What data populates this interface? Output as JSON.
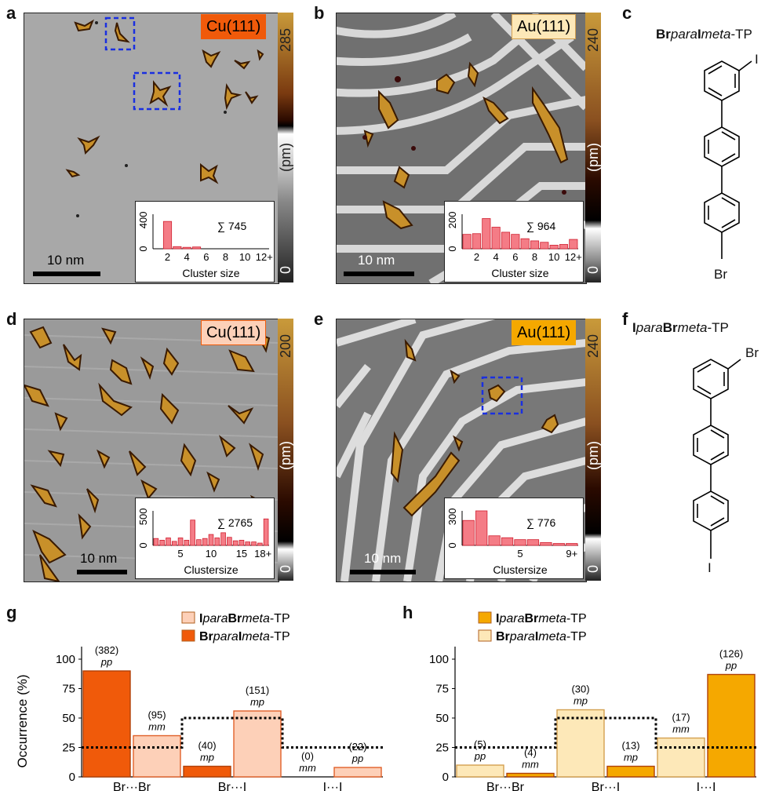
{
  "panels": {
    "a": {
      "letter": "a",
      "surface": "Cu(111)",
      "cbar_max": "285",
      "cbar_unit": "(pm)",
      "cbar_min": "0",
      "scale": "10 nm",
      "sum": "∑ 745",
      "xlabel": "Cluster size",
      "yticks": [
        "400",
        "0"
      ],
      "xticks": [
        "2",
        "4",
        "6",
        "8",
        "10",
        "12+"
      ],
      "hist": [
        0,
        380,
        30,
        20,
        25,
        0,
        0,
        0,
        0,
        0,
        0,
        0
      ]
    },
    "b": {
      "letter": "b",
      "surface": "Au(111)",
      "cbar_max": "240",
      "cbar_unit": "(pm)",
      "cbar_min": "0",
      "scale": "10 nm",
      "sum": "∑ 964",
      "xlabel": "Cluster size",
      "yticks": [
        "200",
        "0"
      ],
      "xticks": [
        "2",
        "4",
        "6",
        "8",
        "10",
        "12+"
      ],
      "hist": [
        100,
        105,
        210,
        150,
        115,
        100,
        70,
        55,
        45,
        25,
        30,
        65
      ]
    },
    "c": {
      "letter": "c",
      "name_pre_b": "Br",
      "name_pre_i": "para",
      "name_mid_b": "I",
      "name_mid_i": "meta",
      "name_suffix": "-TP",
      "top_sub": "I",
      "bottom_sub": "Br"
    },
    "d": {
      "letter": "d",
      "surface": "Cu(111)",
      "cbar_max": "200",
      "cbar_unit": "(pm)",
      "cbar_min": "0",
      "scale": "10 nm",
      "sum": "∑ 2765",
      "xlabel": "Clustersize",
      "yticks": [
        "500",
        "0"
      ],
      "xticks": [
        "5",
        "10",
        "15",
        "18+"
      ],
      "hist": [
        120,
        90,
        130,
        70,
        130,
        90,
        440,
        100,
        120,
        190,
        130,
        220,
        140,
        80,
        90,
        60,
        60,
        40,
        460
      ]
    },
    "e": {
      "letter": "e",
      "surface": "Au(111)",
      "cbar_max": "240",
      "cbar_unit": "(pm)",
      "cbar_min": "0",
      "scale": "10 nm",
      "sum": "∑ 776",
      "xlabel": "Clustersize",
      "yticks": [
        "300",
        "0"
      ],
      "xticks": [
        "5",
        "9+"
      ],
      "hist": [
        260,
        360,
        100,
        80,
        60,
        60,
        30,
        20,
        20
      ]
    },
    "f": {
      "letter": "f",
      "name_pre_b": "I",
      "name_pre_i": "para",
      "name_mid_b": "Br",
      "name_mid_i": "meta",
      "name_suffix": "-TP",
      "top_sub": "Br",
      "bottom_sub": "I"
    },
    "g": {
      "letter": "g"
    },
    "h": {
      "letter": "h"
    }
  },
  "chart_data": [
    {
      "type": "bar",
      "panel": "g",
      "ylabel": "Occurrence (%)",
      "yticks": [
        "0",
        "25",
        "50",
        "75",
        "100"
      ],
      "ylim": [
        0,
        100
      ],
      "categories": [
        "Br···Br",
        "Br···I",
        "I···I"
      ],
      "legend": [
        {
          "bold": "I",
          "ital": "para",
          "bold2": "Br",
          "ital2": "meta",
          "suffix": "-TP",
          "color": "#fdd0b8"
        },
        {
          "bold": "Br",
          "ital": "para",
          "bold2": "I",
          "ital2": "meta",
          "suffix": "-TP",
          "color": "#f05a0a"
        }
      ],
      "bars": [
        {
          "value": 90,
          "count": "(382)",
          "type": "pp",
          "color": "#f05a0a"
        },
        {
          "value": 35,
          "count": "(95)",
          "type": "mm",
          "color": "#fdd0b8"
        },
        {
          "value": 9,
          "count": "(40)",
          "type": "mp",
          "color": "#f05a0a"
        },
        {
          "value": 56,
          "count": "(151)",
          "type": "mp",
          "color": "#fdd0b8"
        },
        {
          "value": 0,
          "count": "(0)",
          "type": "mm",
          "color": "#f05a0a"
        },
        {
          "value": 8,
          "count": "(22)",
          "type": "pp",
          "color": "#fdd0b8"
        }
      ],
      "dotted_levels": [
        25,
        50,
        25
      ]
    },
    {
      "type": "bar",
      "panel": "h",
      "ylabel": "",
      "yticks": [
        "0",
        "25",
        "50",
        "75",
        "100"
      ],
      "ylim": [
        0,
        100
      ],
      "categories": [
        "Br···Br",
        "Br···I",
        "I···I"
      ],
      "legend": [
        {
          "bold": "I",
          "ital": "para",
          "bold2": "Br",
          "ital2": "meta",
          "suffix": "-TP",
          "color": "#f5a800"
        },
        {
          "bold": "Br",
          "ital": "para",
          "bold2": "I",
          "ital2": "meta",
          "suffix": "-TP",
          "color": "#fde8b8"
        }
      ],
      "bars": [
        {
          "value": 10,
          "count": "(5)",
          "type": "pp",
          "color": "#fde8b8"
        },
        {
          "value": 3,
          "count": "(4)",
          "type": "mm",
          "color": "#f5a800"
        },
        {
          "value": 57,
          "count": "(30)",
          "type": "mp",
          "color": "#fde8b8"
        },
        {
          "value": 9,
          "count": "(13)",
          "type": "mp",
          "color": "#f5a800"
        },
        {
          "value": 33,
          "count": "(17)",
          "type": "mm",
          "color": "#fde8b8"
        },
        {
          "value": 87,
          "count": "(126)",
          "type": "pp",
          "color": "#f5a800"
        }
      ],
      "dotted_levels": [
        25,
        50,
        25
      ]
    }
  ],
  "colors": {
    "cu": "#f05a0a",
    "cu_light": "#fdd0b8",
    "au": "#f5a800",
    "au_light": "#fde8b8",
    "hist": "#f47c86"
  }
}
